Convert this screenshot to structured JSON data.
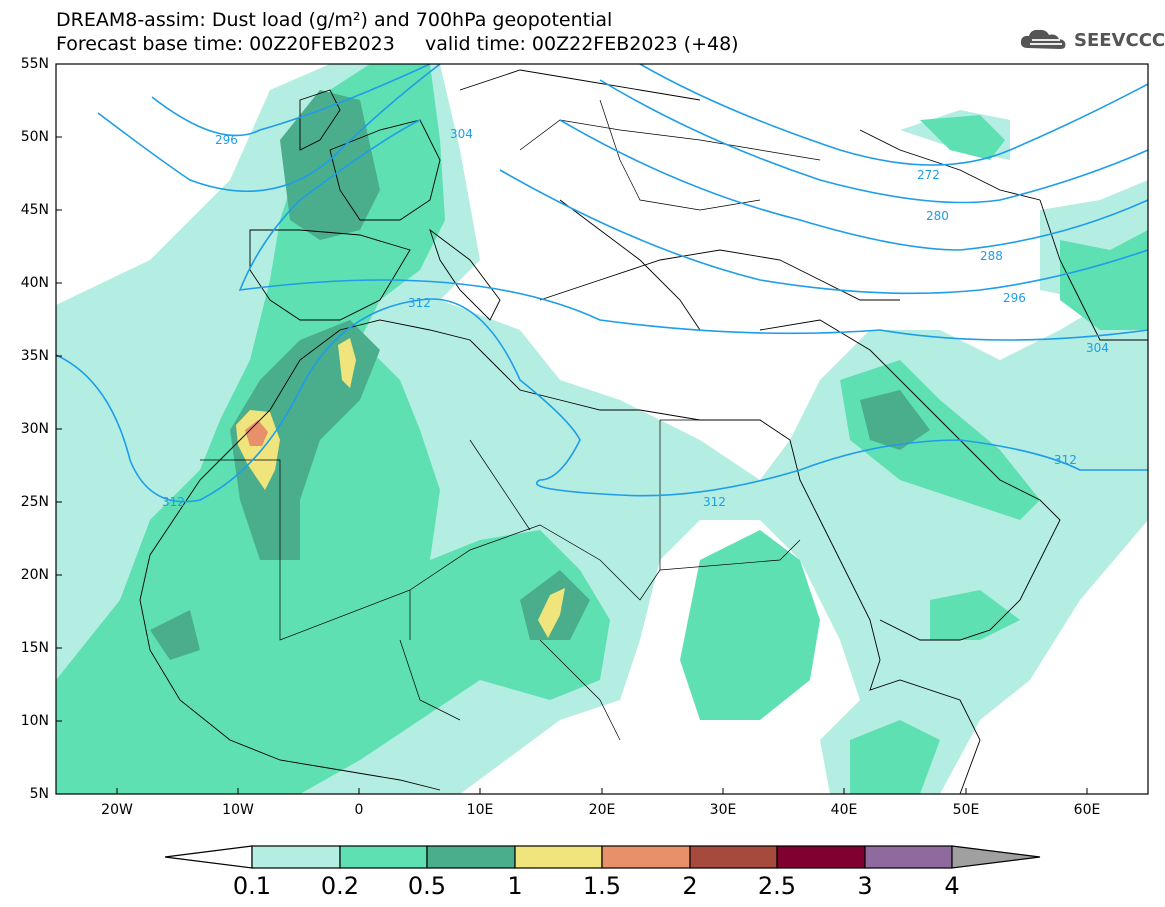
{
  "header": {
    "title_line1": "DREAM8-assim: Dust load (g/m²) and 700hPa geopotential",
    "title_line2": "Forecast base time: 00Z20FEB2023     valid time: 00Z22FEB2023 (+48)",
    "logo_text": "SEEVCCC"
  },
  "map": {
    "lon_range": [
      -25,
      65
    ],
    "lat_range": [
      5,
      55
    ],
    "lat_labels": [
      "55N",
      "50N",
      "45N",
      "40N",
      "35N",
      "30N",
      "25N",
      "20N",
      "15N",
      "10N",
      "5N"
    ],
    "lon_labels": [
      "20W",
      "10W",
      "0",
      "10E",
      "20E",
      "30E",
      "40E",
      "50E",
      "60E"
    ],
    "contour_labels": [
      "296",
      "304",
      "272",
      "280",
      "288",
      "296",
      "304",
      "312",
      "312",
      "312",
      "312"
    ],
    "dust_colors": {
      "0.1-0.2": "#b4ede2",
      "0.2-0.5": "#5ee0b3",
      "0.5-1": "#4aae8c",
      "1-1.5": "#f0e47c",
      "1.5-2": "#e8906a",
      "contour_line": "#1e9de8"
    }
  },
  "colorbar": {
    "labels": [
      "0.1",
      "0.2",
      "0.5",
      "1",
      "1.5",
      "2",
      "2.5",
      "3",
      "4"
    ],
    "colors": [
      "#ffffff",
      "#b4ede2",
      "#5ee0b3",
      "#4aae8c",
      "#f0e47c",
      "#e8906a",
      "#a64a3e",
      "#800030",
      "#8e6a9e",
      "#a0a0a0"
    ]
  }
}
